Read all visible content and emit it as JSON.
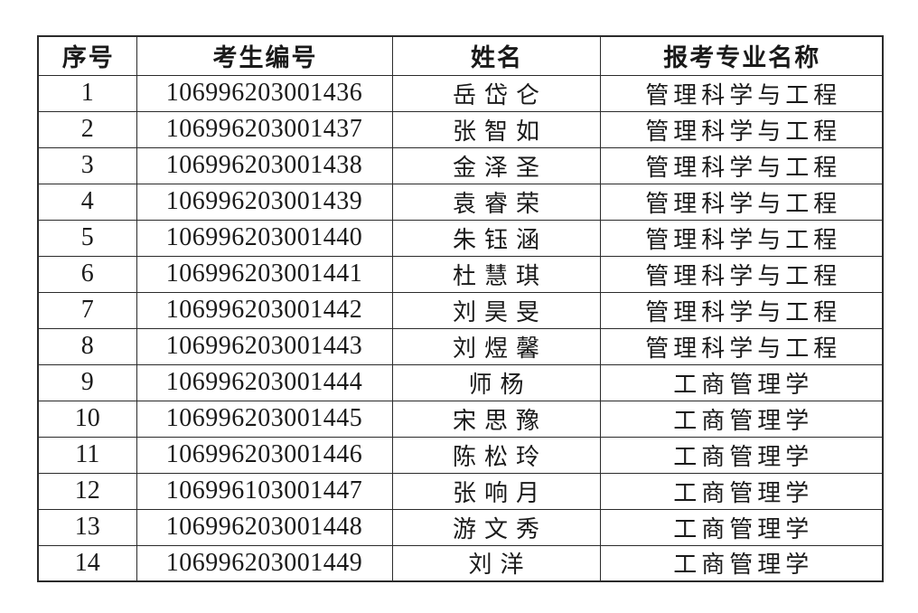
{
  "colors": {
    "background": "#ffffff",
    "border": "#2b2b2b",
    "text": "#1a1a1a"
  },
  "table": {
    "headers": [
      "序号",
      "考生编号",
      "姓名",
      "报考专业名称"
    ],
    "rows": [
      {
        "no": "1",
        "candidate_id": "106996203001436",
        "name": "岳岱仑",
        "major": "管理科学与工程"
      },
      {
        "no": "2",
        "candidate_id": "106996203001437",
        "name": "张智如",
        "major": "管理科学与工程"
      },
      {
        "no": "3",
        "candidate_id": "106996203001438",
        "name": "金泽圣",
        "major": "管理科学与工程"
      },
      {
        "no": "4",
        "candidate_id": "106996203001439",
        "name": "袁睿荣",
        "major": "管理科学与工程"
      },
      {
        "no": "5",
        "candidate_id": "106996203001440",
        "name": "朱钰涵",
        "major": "管理科学与工程"
      },
      {
        "no": "6",
        "candidate_id": "106996203001441",
        "name": "杜慧琪",
        "major": "管理科学与工程"
      },
      {
        "no": "7",
        "candidate_id": "106996203001442",
        "name": "刘昊旻",
        "major": "管理科学与工程"
      },
      {
        "no": "8",
        "candidate_id": "106996203001443",
        "name": "刘煜馨",
        "major": "管理科学与工程"
      },
      {
        "no": "9",
        "candidate_id": "106996203001444",
        "name": "师杨",
        "major": "工商管理学"
      },
      {
        "no": "10",
        "candidate_id": "106996203001445",
        "name": "宋思豫",
        "major": "工商管理学"
      },
      {
        "no": "11",
        "candidate_id": "106996203001446",
        "name": "陈松玲",
        "major": "工商管理学"
      },
      {
        "no": "12",
        "candidate_id": "106996103001447",
        "name": "张响月",
        "major": "工商管理学"
      },
      {
        "no": "13",
        "candidate_id": "106996203001448",
        "name": "游文秀",
        "major": "工商管理学"
      },
      {
        "no": "14",
        "candidate_id": "106996203001449",
        "name": "刘洋",
        "major": "工商管理学"
      }
    ]
  }
}
